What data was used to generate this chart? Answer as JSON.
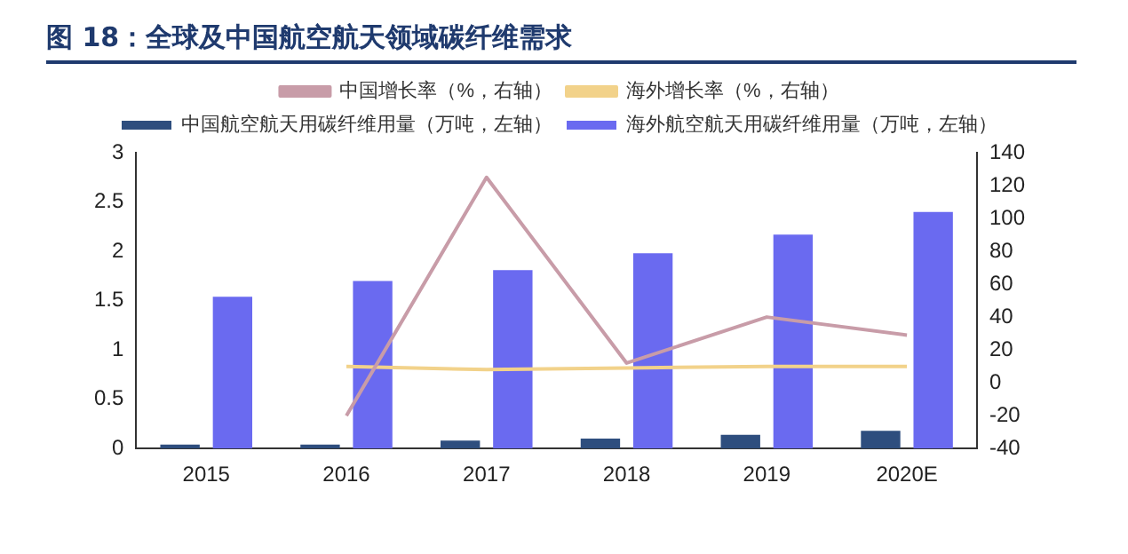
{
  "chart_data": {
    "type": "bar",
    "title": "图 18：全球及中国航空航天领域碳纤维需求",
    "categories": [
      "2015",
      "2016",
      "2017",
      "2018",
      "2019",
      "2020E"
    ],
    "series": [
      {
        "name": "中国航空航天用碳纤维用量（万吨，左轴）",
        "color": "#2e4e7e",
        "values": [
          0.04,
          0.04,
          0.08,
          0.1,
          0.14,
          0.18
        ]
      },
      {
        "name": "海外航空航天用碳纤维用量（万吨，左轴）",
        "color": "#6a6af0",
        "values": [
          1.54,
          1.7,
          1.81,
          1.98,
          2.17,
          2.4
        ]
      },
      {
        "name": "中国增长率（%，右轴）",
        "type": "line",
        "axis": "y2",
        "color": "#c89ca8",
        "values": [
          null,
          -20,
          125,
          12,
          40,
          29
        ]
      },
      {
        "name": "海外增长率（%，右轴）",
        "type": "line",
        "axis": "y2",
        "color": "#f2d28a",
        "values": [
          null,
          10,
          8,
          9,
          10,
          10
        ]
      }
    ],
    "ylim": [
      0,
      3
    ],
    "yticks": [
      0,
      0.5,
      1,
      1.5,
      2,
      2.5,
      3
    ],
    "y2lim": [
      -40,
      140
    ],
    "y2ticks": [
      -40,
      -20,
      0,
      20,
      40,
      60,
      80,
      100,
      120,
      140
    ],
    "grid": false,
    "legend": "top",
    "marker": "none"
  }
}
